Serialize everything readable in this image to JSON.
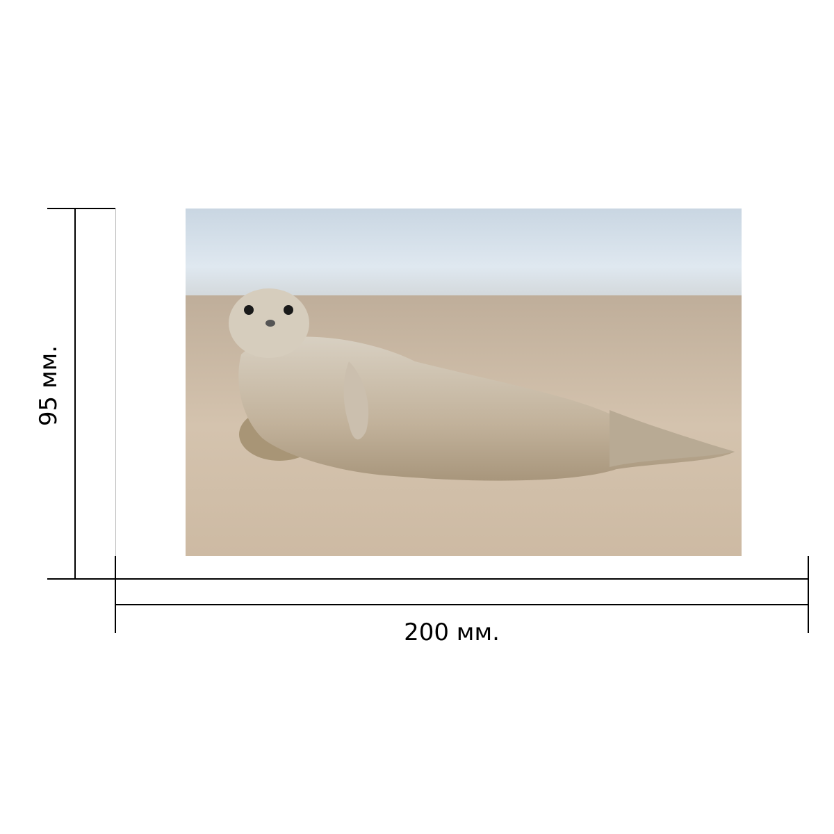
{
  "dimensions": {
    "width_label": "200 мм.",
    "height_label": "95 мм."
  },
  "photo": {
    "subject": "seal-on-beach-photo"
  }
}
